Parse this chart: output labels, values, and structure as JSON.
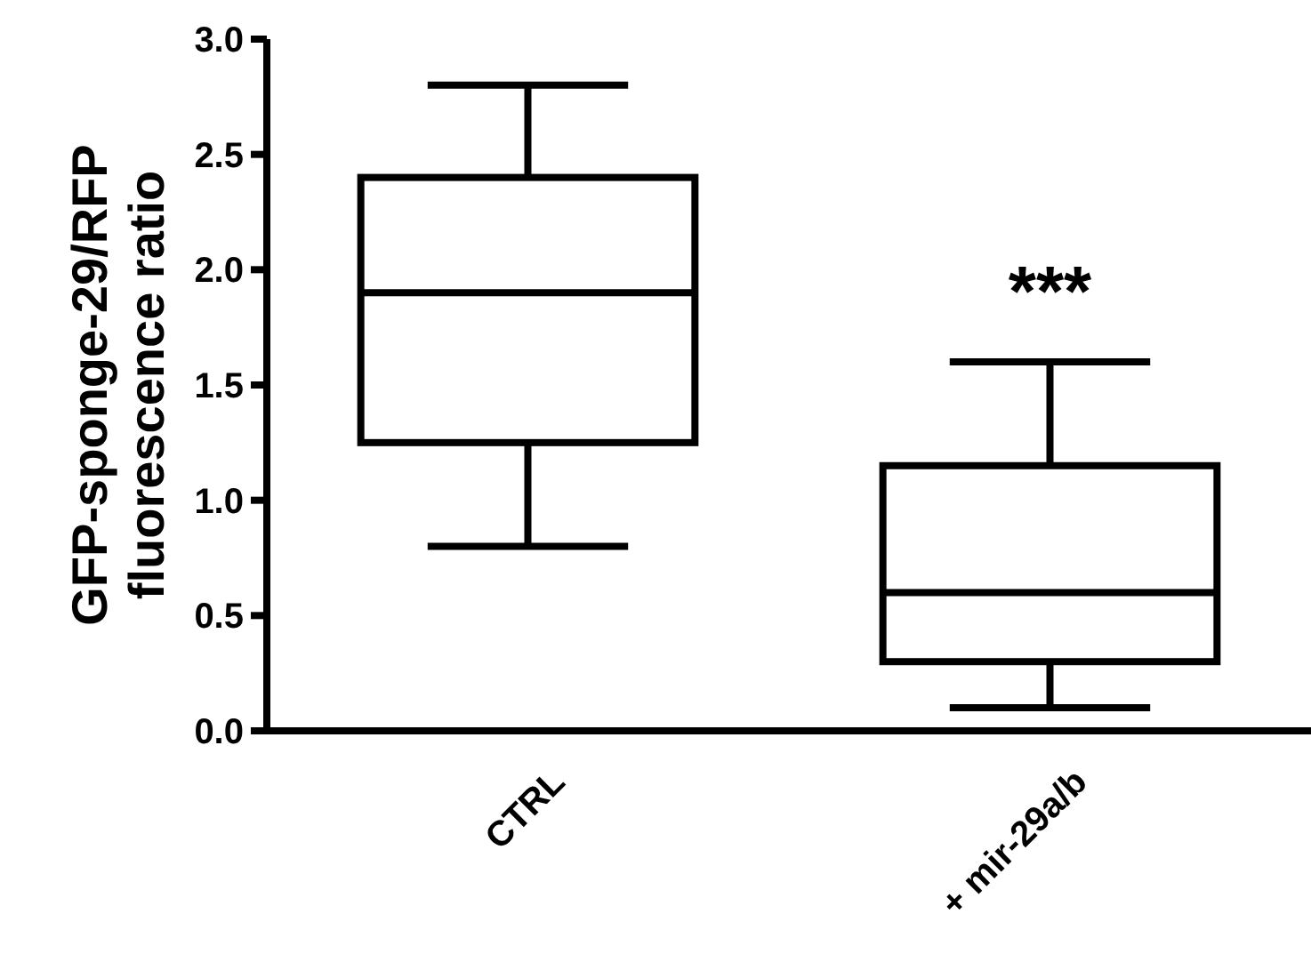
{
  "chart_data": {
    "type": "box",
    "ylabel": "GFP-sponge-29/RFP\nfluorescence ratio",
    "categories": [
      "CTRL",
      "+ mir-29a/b"
    ],
    "boxes": [
      {
        "low": 0.8,
        "q1": 1.25,
        "median": 1.9,
        "q3": 2.4,
        "high": 2.8
      },
      {
        "low": 0.1,
        "q1": 0.3,
        "median": 0.6,
        "q3": 1.15,
        "high": 1.6
      }
    ],
    "ylim": [
      0,
      3
    ],
    "yticks": [
      {
        "value": 0,
        "label": "0.0"
      },
      {
        "value": 0.5,
        "label": "0.5"
      },
      {
        "value": 1,
        "label": "1.0"
      },
      {
        "value": 1.5,
        "label": "1.5"
      },
      {
        "value": 2,
        "label": "2.0"
      },
      {
        "value": 2.5,
        "label": "2.5"
      },
      {
        "value": 3,
        "label": "3.0"
      }
    ],
    "color": "#000000",
    "annotations": [
      "***"
    ]
  }
}
